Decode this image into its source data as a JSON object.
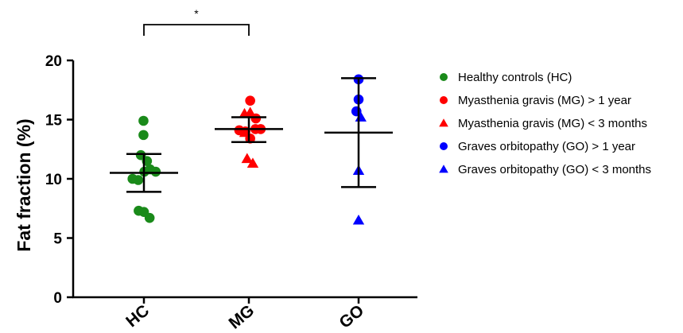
{
  "chart_data": {
    "type": "scatter",
    "title": "",
    "xlabel": "",
    "ylabel": "Fat fraction (%)",
    "ylim": [
      0,
      20
    ],
    "yticks": [
      0,
      5,
      10,
      15,
      20
    ],
    "categories": [
      "HC",
      "MG",
      "GO"
    ],
    "grid": false,
    "legend_position": "right",
    "series": [
      {
        "name": "Healthy controls (HC)",
        "category": "HC",
        "marker": "circle",
        "color": "#1a8a1a",
        "points": [
          {
            "x": -0.01,
            "y": 14.9
          },
          {
            "x": -0.01,
            "y": 13.7
          },
          {
            "x": -0.07,
            "y": 12.0
          },
          {
            "x": 0.07,
            "y": 11.5
          },
          {
            "x": 0.01,
            "y": 10.6
          },
          {
            "x": 0.14,
            "y": 10.8
          },
          {
            "x": 0.27,
            "y": 10.6
          },
          {
            "x": -0.26,
            "y": 10.0
          },
          {
            "x": -0.13,
            "y": 9.9
          },
          {
            "x": -0.12,
            "y": 7.3
          },
          {
            "x": 0.0,
            "y": 7.2
          },
          {
            "x": 0.13,
            "y": 6.7
          }
        ]
      },
      {
        "name": "Myasthenia gravis (MG) > 1 year",
        "category": "MG",
        "marker": "circle",
        "color": "#ff0000",
        "points": [
          {
            "x": 0.03,
            "y": 16.6
          },
          {
            "x": 0.16,
            "y": 15.1
          },
          {
            "x": -0.22,
            "y": 14.1
          },
          {
            "x": -0.08,
            "y": 14.0
          },
          {
            "x": 0.15,
            "y": 14.2
          },
          {
            "x": 0.27,
            "y": 14.2
          },
          {
            "x": 0.03,
            "y": 13.4
          }
        ]
      },
      {
        "name": "Myasthenia gravis (MG) < 3 months",
        "category": "MG",
        "marker": "triangle",
        "color": "#ff0000",
        "points": [
          {
            "x": -0.1,
            "y": 15.5
          },
          {
            "x": 0.03,
            "y": 15.6
          },
          {
            "x": -0.09,
            "y": 13.9
          },
          {
            "x": -0.04,
            "y": 11.7
          },
          {
            "x": 0.09,
            "y": 11.3
          }
        ]
      },
      {
        "name": "Graves orbitopathy (GO) > 1 year",
        "category": "GO",
        "marker": "circle",
        "color": "#0000ff",
        "points": [
          {
            "x": 0.0,
            "y": 18.4
          },
          {
            "x": 0.0,
            "y": 16.7
          },
          {
            "x": -0.05,
            "y": 15.7
          }
        ]
      },
      {
        "name": "Graves orbitopathy (GO) < 3 months",
        "category": "GO",
        "marker": "triangle",
        "color": "#0000ff",
        "points": [
          {
            "x": 0.05,
            "y": 15.2
          },
          {
            "x": 0.0,
            "y": 10.7
          },
          {
            "x": 0.0,
            "y": 6.5
          }
        ]
      }
    ],
    "summary_bars": [
      {
        "category": "HC",
        "mean": 10.5,
        "lower": 8.9,
        "upper": 12.1
      },
      {
        "category": "MG",
        "mean": 14.2,
        "lower": 13.1,
        "upper": 15.2
      },
      {
        "category": "GO",
        "mean": 13.9,
        "lower": 9.3,
        "upper": 18.5
      }
    ],
    "annotations": [
      {
        "text": "*",
        "from": "HC",
        "to": "MG"
      }
    ]
  }
}
